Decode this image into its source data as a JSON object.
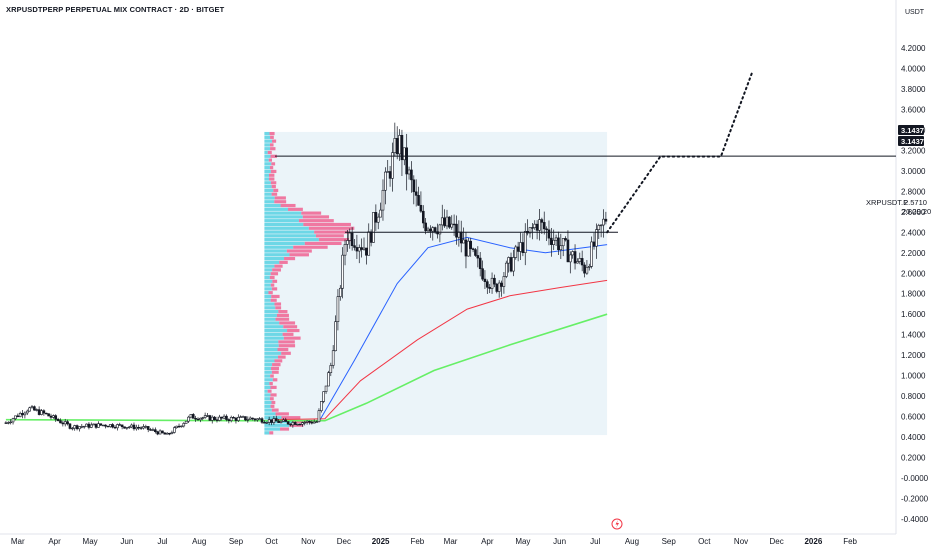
{
  "header": {
    "title": "XRPUSDTPERP PERPETUAL MIX CONTRACT · 2D · BITGET"
  },
  "price_axis": {
    "unit": "USDT",
    "ticks": [
      "4.2000",
      "4.0000",
      "3.8000",
      "3.6000",
      "3.4000",
      "3.2000",
      "3.0000",
      "2.8000",
      "2.6000",
      "2.4000",
      "2.2000",
      "2.0000",
      "1.8000",
      "1.6000",
      "1.4000",
      "1.2000",
      "1.0000",
      "0.8000",
      "0.6000",
      "0.4000",
      "0.2000",
      "-0.0000",
      "-0.2000",
      "-0.4000"
    ],
    "level_labels": [
      "3.1437",
      "3.1437"
    ],
    "symbol_label": "XRPUSDT.P",
    "last_price": "2.5710",
    "countdown": "20:29:20"
  },
  "time_axis": {
    "labels": [
      "Mar",
      "Apr",
      "May",
      "Jun",
      "Jul",
      "Aug",
      "Sep",
      "Oct",
      "Nov",
      "Dec",
      "2025",
      "Feb",
      "Mar",
      "Apr",
      "May",
      "Jun",
      "Jul",
      "Aug",
      "Sep",
      "Oct",
      "Nov",
      "Dec",
      "2026",
      "Feb"
    ],
    "bold_labels": [
      "2025",
      "2026"
    ]
  },
  "colors": {
    "candle": "#131722",
    "ema_blue": "#2962ff",
    "ema_red": "#f23645",
    "ema_green": "#66ef66",
    "vp_up": "#4dd0e1",
    "vp_down": "#f06292",
    "vp_box": "#e3f0f7",
    "label_bg": "#131722"
  },
  "chart_data": {
    "type": "candlestick",
    "title": "XRPUSDTPERP PERPETUAL MIX CONTRACT · 2D · BITGET",
    "y_unit": "USDT",
    "ylim": [
      -0.4,
      4.2
    ],
    "x_range": [
      "2024-03",
      "2026-02"
    ],
    "close_path": [
      {
        "date": "2024-02-20",
        "close": 0.54
      },
      {
        "date": "2024-03-10",
        "close": 0.68
      },
      {
        "date": "2024-03-25",
        "close": 0.62
      },
      {
        "date": "2024-04-15",
        "close": 0.5
      },
      {
        "date": "2024-05-15",
        "close": 0.52
      },
      {
        "date": "2024-06-15",
        "close": 0.49
      },
      {
        "date": "2024-07-05",
        "close": 0.42
      },
      {
        "date": "2024-07-25",
        "close": 0.6
      },
      {
        "date": "2024-08-15",
        "close": 0.58
      },
      {
        "date": "2024-09-15",
        "close": 0.58
      },
      {
        "date": "2024-10-15",
        "close": 0.54
      },
      {
        "date": "2024-11-08",
        "close": 0.55
      },
      {
        "date": "2024-11-20",
        "close": 1.1
      },
      {
        "date": "2024-12-03",
        "close": 2.4
      },
      {
        "date": "2024-12-20",
        "close": 2.25
      },
      {
        "date": "2025-01-16",
        "close": 3.3
      },
      {
        "date": "2025-02-05",
        "close": 2.5
      },
      {
        "date": "2025-03-02",
        "close": 2.45
      },
      {
        "date": "2025-04-07",
        "close": 1.85
      },
      {
        "date": "2025-05-13",
        "close": 2.5
      },
      {
        "date": "2025-06-22",
        "close": 2.05
      },
      {
        "date": "2025-07-11",
        "close": 2.57
      }
    ],
    "last_price": 2.571,
    "horizontal_levels": [
      {
        "price": 3.1437,
        "label": "3.1437"
      },
      {
        "price": 2.4
      }
    ],
    "moving_averages": [
      {
        "color": "#2962ff",
        "points": [
          {
            "date": "2024-11-10",
            "value": 0.55
          },
          {
            "date": "2024-12-10",
            "value": 1.15
          },
          {
            "date": "2025-01-15",
            "value": 1.9
          },
          {
            "date": "2025-02-10",
            "value": 2.25
          },
          {
            "date": "2025-03-15",
            "value": 2.35
          },
          {
            "date": "2025-04-20",
            "value": 2.25
          },
          {
            "date": "2025-05-20",
            "value": 2.2
          },
          {
            "date": "2025-07-11",
            "value": 2.28
          }
        ]
      },
      {
        "color": "#f23645",
        "points": [
          {
            "date": "2024-10-01",
            "value": 0.57
          },
          {
            "date": "2024-11-15",
            "value": 0.58
          },
          {
            "date": "2024-12-15",
            "value": 0.95
          },
          {
            "date": "2025-02-01",
            "value": 1.35
          },
          {
            "date": "2025-03-15",
            "value": 1.65
          },
          {
            "date": "2025-04-20",
            "value": 1.78
          },
          {
            "date": "2025-06-01",
            "value": 1.86
          },
          {
            "date": "2025-07-11",
            "value": 1.93
          }
        ]
      },
      {
        "color": "#66ef66",
        "points": [
          {
            "date": "2024-02-20",
            "value": 0.57
          },
          {
            "date": "2024-09-01",
            "value": 0.56
          },
          {
            "date": "2024-11-15",
            "value": 0.56
          },
          {
            "date": "2024-12-20",
            "value": 0.73
          },
          {
            "date": "2025-02-15",
            "value": 1.05
          },
          {
            "date": "2025-04-20",
            "value": 1.3
          },
          {
            "date": "2025-07-11",
            "value": 1.6
          }
        ]
      }
    ],
    "projection": [
      {
        "date": "2025-07-11",
        "value": 2.4
      },
      {
        "date": "2025-08-25",
        "value": 3.14
      },
      {
        "date": "2025-10-15",
        "value": 3.14
      },
      {
        "date": "2025-11-10",
        "value": 3.95
      }
    ],
    "volume_profile": {
      "date_start": "2024-09-25",
      "date_end": "2025-07-11",
      "price_low": 0.42,
      "price_high": 3.38,
      "poc_price": 2.4
    }
  }
}
